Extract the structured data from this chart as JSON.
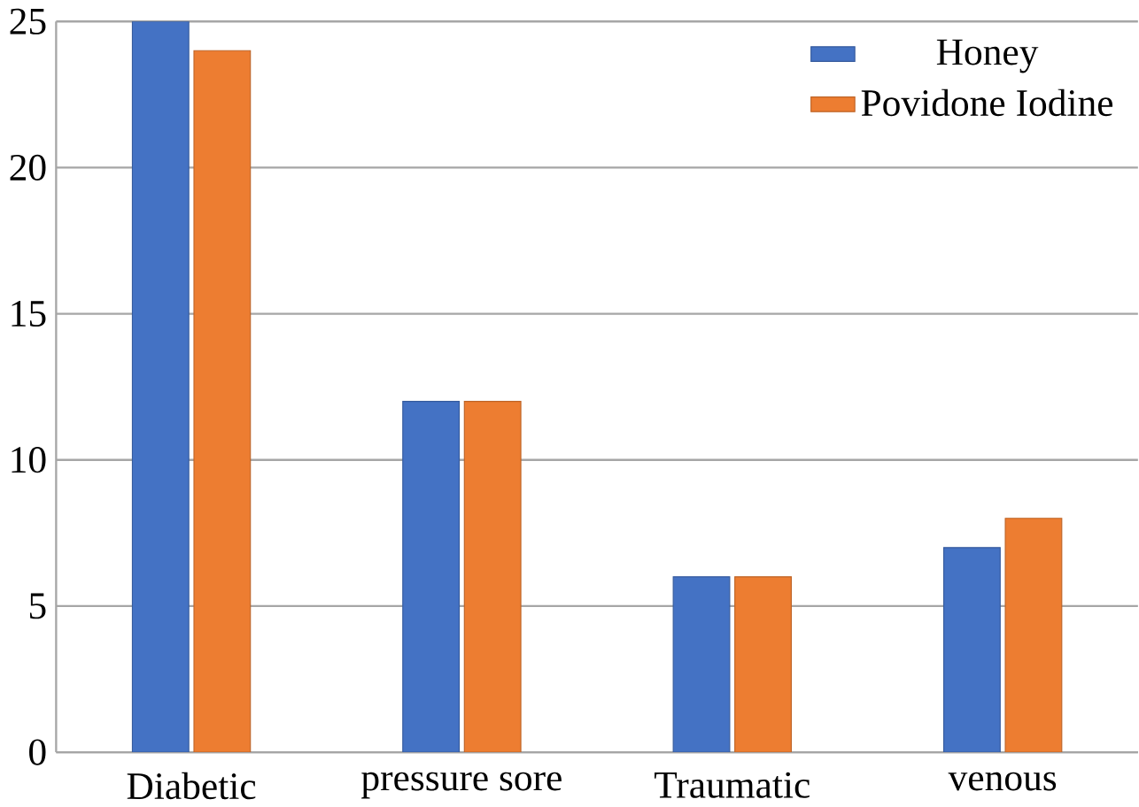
{
  "chart_data": {
    "type": "bar",
    "categories": [
      "Diabetic",
      "pressure sore",
      "Traumatic",
      "venous"
    ],
    "series": [
      {
        "name": "Honey",
        "color": "#4472c4",
        "values": [
          25,
          12,
          6,
          7
        ]
      },
      {
        "name": "Povidone Iodine",
        "color": "#ed7d31",
        "values": [
          24,
          12,
          6,
          8
        ]
      }
    ],
    "ylim": [
      0,
      25
    ],
    "yticks": [
      0,
      5,
      10,
      15,
      20,
      25
    ],
    "grid": "y",
    "legend": "top right"
  }
}
